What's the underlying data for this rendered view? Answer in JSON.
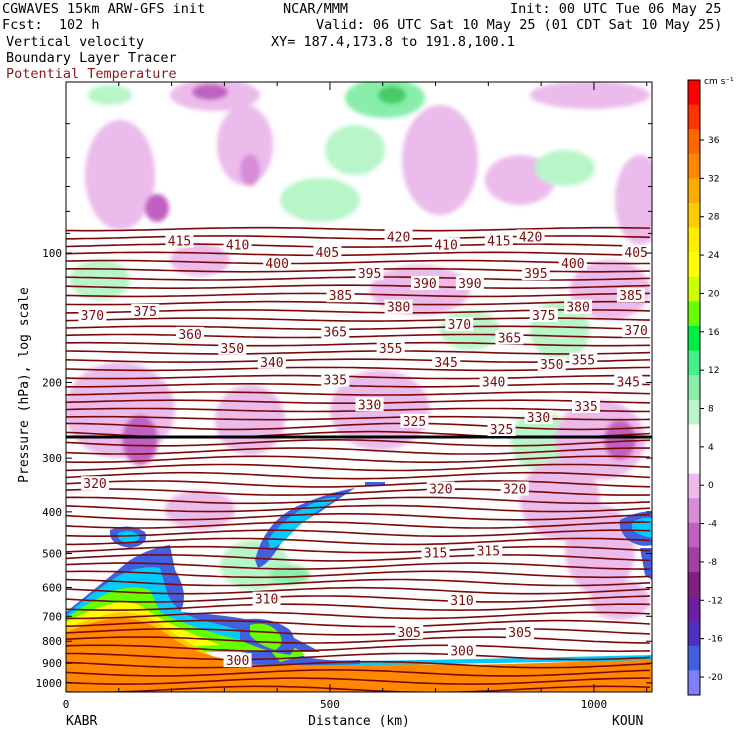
{
  "header": {
    "model": "CGWAVES 15km ARW-GFS init",
    "fcst": "Fcst:  102 h",
    "org": "NCAR/MMM",
    "init": "Init: 00 UTC Tue 06 May 25",
    "valid": "Valid: 06 UTC Sat 10 May 25 (01 CDT Sat 10 May 25)",
    "xy": "XY= 187.4,173.8 to 191.8,100.1",
    "field1": "Vertical velocity",
    "field2": "Boundary Layer Tracer",
    "field3": "Potential Temperature"
  },
  "colors": {
    "theta_line": "#7a0a0a",
    "field3_label": "#8b1a1a"
  },
  "chart_data": {
    "type": "cross-section",
    "xlabel": "Distance (km)",
    "ylabel": "Pressure (hPa), log scale",
    "x_ticks": [
      0,
      500,
      1000
    ],
    "x_range": [
      0,
      1110
    ],
    "y_ticks": [
      100,
      200,
      300,
      400,
      500,
      600,
      700,
      800,
      900,
      1000
    ],
    "y_range": [
      40,
      1050
    ],
    "y_scale": "log",
    "left_endpoint": "KABR",
    "right_endpoint": "KOUN",
    "colorbar": {
      "unit": "cm s⁻¹",
      "ticks": [
        36,
        32,
        28,
        24,
        20,
        16,
        12,
        8,
        4,
        0,
        -4,
        -8,
        -12,
        -16,
        -20
      ],
      "colors": [
        "#ff0000",
        "#ff3300",
        "#ff6600",
        "#ff8800",
        "#ffaa00",
        "#ffcc00",
        "#ffee00",
        "#ffff00",
        "#ccff00",
        "#66ff00",
        "#00ee44",
        "#44ee88",
        "#88eeaa",
        "#b8f5c8",
        "#ffffff",
        "#ffffff",
        "#ebbbeb",
        "#d88cd8",
        "#c060c0",
        "#a040a0",
        "#802080",
        "#6a20a0",
        "#5030c0",
        "#4060e0",
        "#8080ff"
      ]
    },
    "theta_labels": [
      {
        "t": "420",
        "x": 630,
        "p": 92
      },
      {
        "t": "420",
        "x": 880,
        "p": 92
      },
      {
        "t": "415",
        "x": 215,
        "p": 94
      },
      {
        "t": "415",
        "x": 820,
        "p": 94
      },
      {
        "t": "410",
        "x": 325,
        "p": 96
      },
      {
        "t": "410",
        "x": 720,
        "p": 96
      },
      {
        "t": "405",
        "x": 495,
        "p": 100
      },
      {
        "t": "405",
        "x": 1080,
        "p": 100
      },
      {
        "t": "400",
        "x": 400,
        "p": 106
      },
      {
        "t": "400",
        "x": 960,
        "p": 106
      },
      {
        "t": "395",
        "x": 575,
        "p": 112
      },
      {
        "t": "395",
        "x": 890,
        "p": 112
      },
      {
        "t": "390",
        "x": 680,
        "p": 118
      },
      {
        "t": "390",
        "x": 765,
        "p": 118
      },
      {
        "t": "385",
        "x": 520,
        "p": 126
      },
      {
        "t": "385",
        "x": 1070,
        "p": 126
      },
      {
        "t": "380",
        "x": 630,
        "p": 134
      },
      {
        "t": "380",
        "x": 970,
        "p": 134
      },
      {
        "t": "375",
        "x": 150,
        "p": 137
      },
      {
        "t": "375",
        "x": 905,
        "p": 140
      },
      {
        "t": "370",
        "x": 50,
        "p": 140
      },
      {
        "t": "370",
        "x": 745,
        "p": 147
      },
      {
        "t": "370",
        "x": 1080,
        "p": 152
      },
      {
        "t": "365",
        "x": 510,
        "p": 153
      },
      {
        "t": "365",
        "x": 840,
        "p": 158
      },
      {
        "t": "360",
        "x": 235,
        "p": 155
      },
      {
        "t": "355",
        "x": 615,
        "p": 167
      },
      {
        "t": "355",
        "x": 980,
        "p": 178
      },
      {
        "t": "350",
        "x": 315,
        "p": 167
      },
      {
        "t": "350",
        "x": 920,
        "p": 182
      },
      {
        "t": "345",
        "x": 720,
        "p": 180
      },
      {
        "t": "345",
        "x": 1065,
        "p": 200
      },
      {
        "t": "340",
        "x": 390,
        "p": 180
      },
      {
        "t": "340",
        "x": 810,
        "p": 200
      },
      {
        "t": "335",
        "x": 510,
        "p": 198
      },
      {
        "t": "335",
        "x": 985,
        "p": 228
      },
      {
        "t": "330",
        "x": 575,
        "p": 226
      },
      {
        "t": "330",
        "x": 895,
        "p": 242
      },
      {
        "t": "325",
        "x": 660,
        "p": 247
      },
      {
        "t": "325",
        "x": 825,
        "p": 258
      },
      {
        "t": "320",
        "x": 55,
        "p": 345
      },
      {
        "t": "320",
        "x": 710,
        "p": 355
      },
      {
        "t": "320",
        "x": 850,
        "p": 355
      },
      {
        "t": "315",
        "x": 700,
        "p": 500
      },
      {
        "t": "315",
        "x": 800,
        "p": 495
      },
      {
        "t": "310",
        "x": 380,
        "p": 640
      },
      {
        "t": "310",
        "x": 750,
        "p": 645
      },
      {
        "t": "305",
        "x": 650,
        "p": 765
      },
      {
        "t": "305",
        "x": 860,
        "p": 765
      },
      {
        "t": "300",
        "x": 325,
        "p": 890
      },
      {
        "t": "300",
        "x": 750,
        "p": 845
      }
    ]
  }
}
